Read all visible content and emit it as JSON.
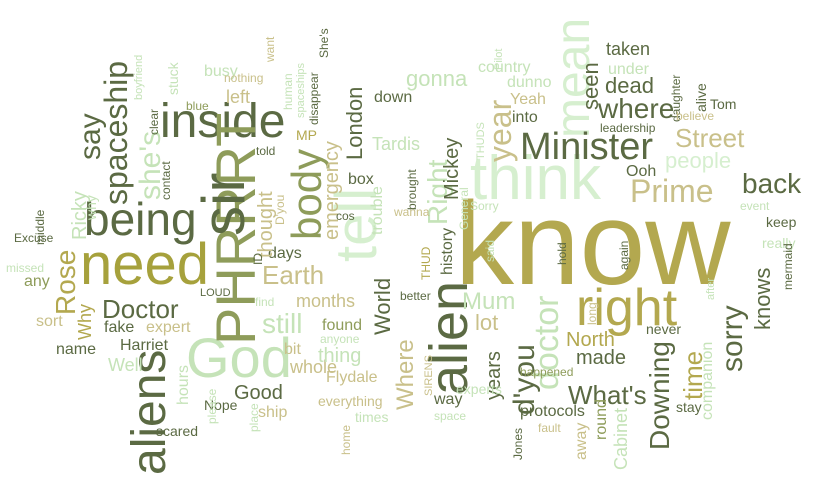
{
  "palette": {
    "dark_olive": "#5b6a43",
    "olive": "#8e9c5a",
    "gold": "#b3a84f",
    "khaki": "#c9c08a",
    "sage": "#a6b783",
    "mint": "#d6efcf",
    "pale_green": "#c5e3b8"
  },
  "words": [
    {
      "text": "know"
    },
    {
      "text": "think"
    },
    {
      "text": "need"
    },
    {
      "text": "being"
    },
    {
      "text": "inside"
    },
    {
      "text": "God"
    },
    {
      "text": "PHRRRT"
    },
    {
      "text": "alien"
    },
    {
      "text": "aliens"
    },
    {
      "text": "tell"
    },
    {
      "text": "sir"
    },
    {
      "text": "right"
    },
    {
      "text": "mean"
    },
    {
      "text": "Minister"
    },
    {
      "text": "Prime"
    },
    {
      "text": "back"
    },
    {
      "text": "body"
    },
    {
      "text": "spaceship"
    },
    {
      "text": "Doctor"
    },
    {
      "text": "doctor"
    },
    {
      "text": "Rose"
    },
    {
      "text": "Earth"
    },
    {
      "text": "where"
    },
    {
      "text": "sorry"
    },
    {
      "text": "still"
    },
    {
      "text": "What's"
    },
    {
      "text": "d'you"
    },
    {
      "text": "Downing"
    },
    {
      "text": "Street"
    },
    {
      "text": "people"
    },
    {
      "text": "time"
    },
    {
      "text": "knows"
    },
    {
      "text": "Mum"
    },
    {
      "text": "say"
    },
    {
      "text": "she's"
    },
    {
      "text": "Right"
    },
    {
      "text": "year"
    },
    {
      "text": "seen"
    },
    {
      "text": "dead"
    },
    {
      "text": "gonna"
    },
    {
      "text": "London"
    },
    {
      "text": "World"
    },
    {
      "text": "Where"
    },
    {
      "text": "made"
    },
    {
      "text": "North"
    },
    {
      "text": "lot"
    },
    {
      "text": "years"
    },
    {
      "text": "Good"
    },
    {
      "text": "whole"
    },
    {
      "text": "thing"
    },
    {
      "text": "found"
    },
    {
      "text": "months"
    },
    {
      "text": "days"
    },
    {
      "text": "thought"
    },
    {
      "text": "emergency"
    },
    {
      "text": "left"
    },
    {
      "text": "Mickey"
    },
    {
      "text": "history"
    },
    {
      "text": "Tardis"
    },
    {
      "text": "trouble"
    },
    {
      "text": "box"
    },
    {
      "text": "Ricky"
    },
    {
      "text": "why"
    },
    {
      "text": "Why"
    },
    {
      "text": "expert"
    },
    {
      "text": "fake"
    },
    {
      "text": "Harriet"
    },
    {
      "text": "name"
    },
    {
      "text": "Well"
    },
    {
      "text": "hours"
    },
    {
      "text": "sort"
    },
    {
      "text": "any"
    },
    {
      "text": "Nope"
    },
    {
      "text": "ship"
    },
    {
      "text": "bit"
    },
    {
      "text": "Flydale"
    },
    {
      "text": "way"
    },
    {
      "text": "round"
    },
    {
      "text": "Cabinet"
    },
    {
      "text": "away"
    },
    {
      "text": "companion"
    },
    {
      "text": "never"
    },
    {
      "text": "Ooh"
    },
    {
      "text": "Yeah"
    },
    {
      "text": "into"
    },
    {
      "text": "under"
    },
    {
      "text": "taken"
    },
    {
      "text": "dunno"
    },
    {
      "text": "country"
    },
    {
      "text": "down"
    },
    {
      "text": "alive"
    },
    {
      "text": "Tom"
    },
    {
      "text": "leadership"
    },
    {
      "text": "daughter"
    },
    {
      "text": "believe"
    },
    {
      "text": "really"
    },
    {
      "text": "keep"
    },
    {
      "text": "mermaid"
    },
    {
      "text": "event"
    },
    {
      "text": "stay"
    },
    {
      "text": "Jones"
    },
    {
      "text": "fault"
    },
    {
      "text": "experts"
    },
    {
      "text": "protocols"
    },
    {
      "text": "happened"
    },
    {
      "text": "everything"
    },
    {
      "text": "times"
    },
    {
      "text": "home"
    },
    {
      "text": "space"
    },
    {
      "text": "scared"
    },
    {
      "text": "please"
    },
    {
      "text": "place"
    },
    {
      "text": "middle"
    },
    {
      "text": "Excuse"
    },
    {
      "text": "missed"
    },
    {
      "text": "LOUD"
    },
    {
      "text": "find"
    },
    {
      "text": "anyone"
    },
    {
      "text": "SIRENS"
    },
    {
      "text": "better"
    },
    {
      "text": "THUD"
    },
    {
      "text": "wanna"
    },
    {
      "text": "General"
    },
    {
      "text": "brought"
    },
    {
      "text": "cos"
    },
    {
      "text": "contact"
    },
    {
      "text": "clear"
    },
    {
      "text": "blue"
    },
    {
      "text": "MP"
    },
    {
      "text": "told"
    },
    {
      "text": "D'you"
    },
    {
      "text": "ID"
    },
    {
      "text": "stuck"
    },
    {
      "text": "busy"
    },
    {
      "text": "nothing"
    },
    {
      "text": "want"
    },
    {
      "text": "human"
    },
    {
      "text": "spaceships"
    },
    {
      "text": "disappear"
    },
    {
      "text": "She's"
    },
    {
      "text": "boyfriend"
    },
    {
      "text": "Sorry"
    },
    {
      "text": "said"
    },
    {
      "text": "hold"
    },
    {
      "text": "again"
    },
    {
      "text": "long"
    },
    {
      "text": "after"
    },
    {
      "text": "THUDS"
    },
    {
      "text": "Pilot"
    }
  ]
}
